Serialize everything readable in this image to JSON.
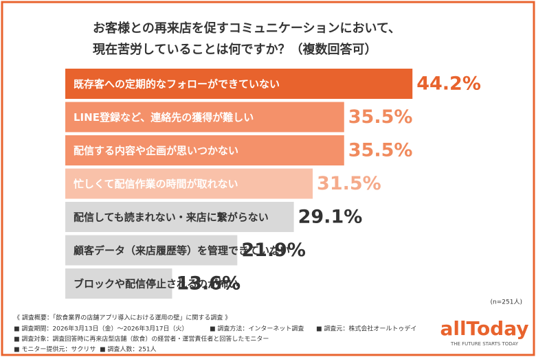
{
  "chart_data": {
    "type": "bar",
    "orientation": "horizontal",
    "title": [
      "お客様との再来店を促すコミュニケーションにおいて、",
      "現在苦労していることは何ですか？（複数回答可）"
    ],
    "categories": [
      "既存客への定期的なフォローができていない",
      "LINE登録など、連絡先の獲得が難しい",
      "配信する内容や企画が思いつかない",
      "忙しくて配信作業の時間が取れない",
      "配信しても読まれない・来店に繋がらない",
      "顧客データ（来店履歴等）を管理できていない",
      "ブロックや配信停止されるのが怖い"
    ],
    "values": [
      44.2,
      35.5,
      35.5,
      31.5,
      29.1,
      21.9,
      13.6
    ],
    "value_labels": [
      "44.2%",
      "35.5%",
      "35.5%",
      "31.5%",
      "29.1%",
      "21.9%",
      "13.6%"
    ],
    "colors": [
      "#e8632d",
      "#f4916a",
      "#f4916a",
      "#f9c1a9",
      "#d9d9d9",
      "#d9d9d9",
      "#d9d9d9"
    ],
    "label_colors": [
      "#ffffff",
      "#ffffff",
      "#ffffff",
      "#ffffff",
      "#333333",
      "#333333",
      "#333333"
    ],
    "value_label_colors": [
      "#e8632d",
      "#f08a5d",
      "#f08a5d",
      "#f5aa8a",
      "#333333",
      "#333333",
      "#333333"
    ],
    "sample": "(n=251人)",
    "notes": [
      "《 調査概要：「飲食業界の店舗アプリ導入における運用の壁」に関する調査 》",
      "■ 調査期間：2026年3月13日（金）～2026年3月17日（火）",
      "■ 調査方法：インターネット調査",
      "■ 調査元：株式会社オールトゥデイ",
      "■ 調査対象：調査回答時に再来店型店舗（飲食）の経営者・運営責任者と回答したモニター",
      "■ モニター提供元：サクリサ",
      "■ 調査人数：251人"
    ],
    "logo": {
      "name": "allToday",
      "tagline": "THE FUTURE STARTS TODAY"
    }
  }
}
